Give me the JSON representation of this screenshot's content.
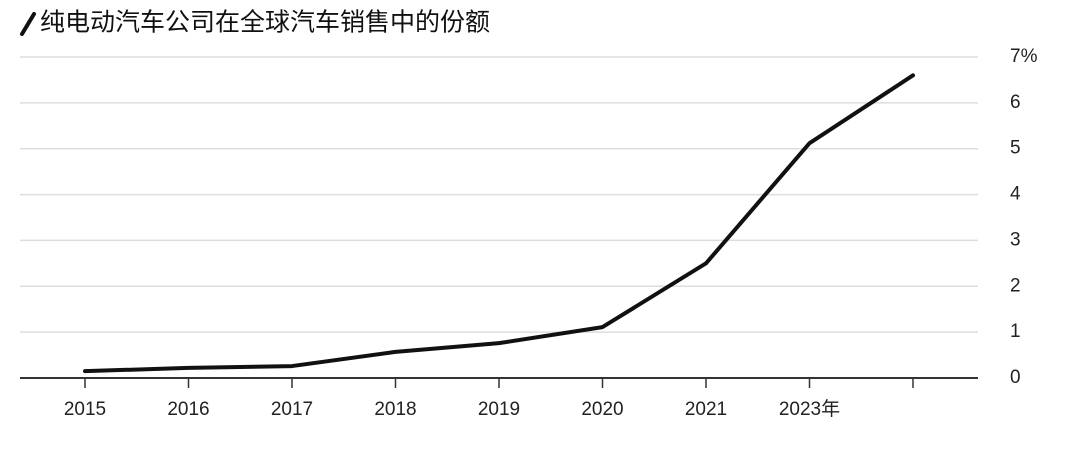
{
  "chart_data": {
    "type": "line",
    "title": "纯电动汽车公司在全球汽车销售中的份额",
    "categories": [
      "2015",
      "2016",
      "2017",
      "2018",
      "2019",
      "2020",
      "2021",
      "2023年",
      null
    ],
    "series": [
      {
        "name": null,
        "color": "#111111",
        "values": [
          0.15,
          0.22,
          0.26,
          0.57,
          0.76,
          1.11,
          2.5,
          5.12,
          6.6
        ]
      }
    ],
    "ylim": [
      0,
      7
    ],
    "yticks": [
      0,
      1,
      2,
      3,
      4,
      5,
      6,
      {
        "value": 7,
        "label": "7%"
      }
    ],
    "grid": true
  }
}
